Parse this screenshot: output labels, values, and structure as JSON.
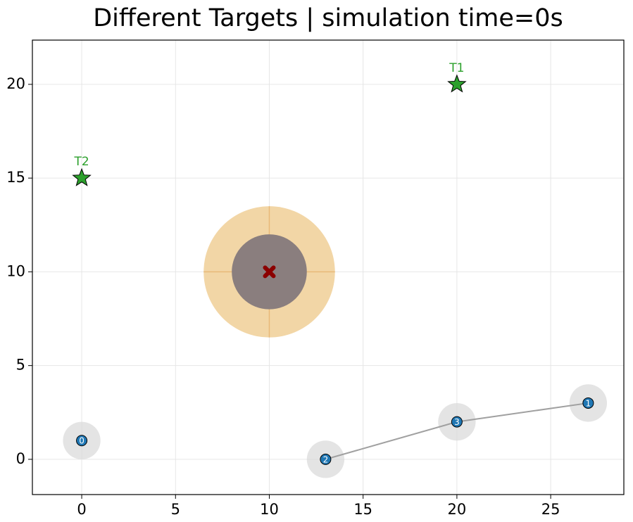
{
  "chart_data": {
    "type": "scatter",
    "title": "Different Targets | simulation time=0s",
    "xlim": [
      -2.63,
      28.9
    ],
    "ylim": [
      -1.88,
      22.36
    ],
    "xticks": [
      0,
      5,
      10,
      15,
      20,
      25
    ],
    "yticks": [
      0,
      5,
      10,
      15,
      20
    ],
    "grid": true,
    "agents": {
      "x": [
        0,
        27,
        13,
        20
      ],
      "y": [
        1,
        3,
        0,
        2
      ],
      "labels": [
        "0",
        "1",
        "2",
        "3"
      ],
      "radius": 1,
      "color": "#1f77b4",
      "halo_color": "#d9d9d9"
    },
    "line": {
      "x": [
        13,
        20,
        27
      ],
      "y": [
        0,
        2,
        3
      ],
      "color": "#a0a0a0"
    },
    "targets": {
      "x": [
        20,
        0
      ],
      "y": [
        20,
        15
      ],
      "labels": [
        "T1",
        "T2"
      ],
      "color": "#2ca02c"
    },
    "obstacle": {
      "x": 10,
      "y": 10,
      "outer_radius": 3.5,
      "inner_radius": 2,
      "outer_color": "#f2d6a6",
      "inner_color": "#8a7e7e",
      "center_color": "#8b0000"
    }
  }
}
